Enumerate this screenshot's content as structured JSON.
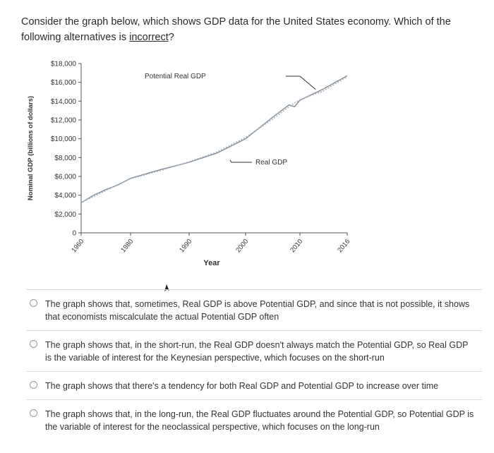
{
  "question": {
    "text_before": "Consider the graph below, which shows GDP data for the United States economy. Which of the following alternatives is ",
    "emphasis": "incorrect",
    "text_after": "?"
  },
  "chart_data": {
    "type": "line",
    "title": "",
    "xlabel": "Year",
    "ylabel": "Nominal GDP (billions of dollars)",
    "x_ticks": [
      "1960",
      "1980",
      "1990",
      "2000",
      "2010",
      "2016"
    ],
    "y_ticks": [
      "0",
      "$2,000",
      "$4,000",
      "$6,000",
      "$8,000",
      "$10,000",
      "$12,000",
      "$14,000",
      "$16,000",
      "$18,000"
    ],
    "ylim": [
      0,
      18000
    ],
    "series": [
      {
        "name": "Real GDP",
        "style": "solid",
        "color": "#7f8c98",
        "x": [
          1960,
          1965,
          1970,
          1975,
          1980,
          1985,
          1990,
          1995,
          2000,
          2005,
          2008,
          2009,
          2010,
          2013,
          2016
        ],
        "y": [
          3200,
          4000,
          4600,
          5100,
          5800,
          6700,
          7500,
          8500,
          10000,
          12300,
          13600,
          13400,
          14100,
          15300,
          16700
        ]
      },
      {
        "name": "Potential Real GDP",
        "style": "dotted",
        "color": "#a8b2bc",
        "x": [
          1960,
          1965,
          1970,
          1975,
          1980,
          1985,
          1990,
          1995,
          2000,
          2005,
          2008,
          2009,
          2010,
          2013,
          2016
        ],
        "y": [
          3250,
          3850,
          4500,
          5150,
          5750,
          6600,
          7550,
          8600,
          10150,
          12100,
          13400,
          13800,
          14150,
          15100,
          16600
        ]
      }
    ],
    "annotations": [
      {
        "text": "Potential Real GDP",
        "target_series": "Potential Real GDP"
      },
      {
        "text": "Real GDP",
        "target_series": "Real GDP"
      }
    ],
    "colors": {
      "axis": "#555555",
      "label": "#333333"
    }
  },
  "options": [
    {
      "text": "The graph shows that, sometimes, Real GDP is above Potential GDP, and since that is not possible, it shows that economists miscalculate the actual Potential GDP often"
    },
    {
      "text": "The graph shows that, in the short-run, the Real GDP doesn't always match the Potential GDP, so Real GDP is the variable of interest for the Keynesian perspective, which focuses on the short-run"
    },
    {
      "text": "The graph shows that there's a tendency for both Real GDP and Potential GDP to increase over time"
    },
    {
      "text": "The graph shows that, in the long-run, the Real GDP fluctuates around the Potential GDP, so Potential GDP is the variable of interest for the neoclassical perspective, which focuses on the long-run"
    }
  ]
}
